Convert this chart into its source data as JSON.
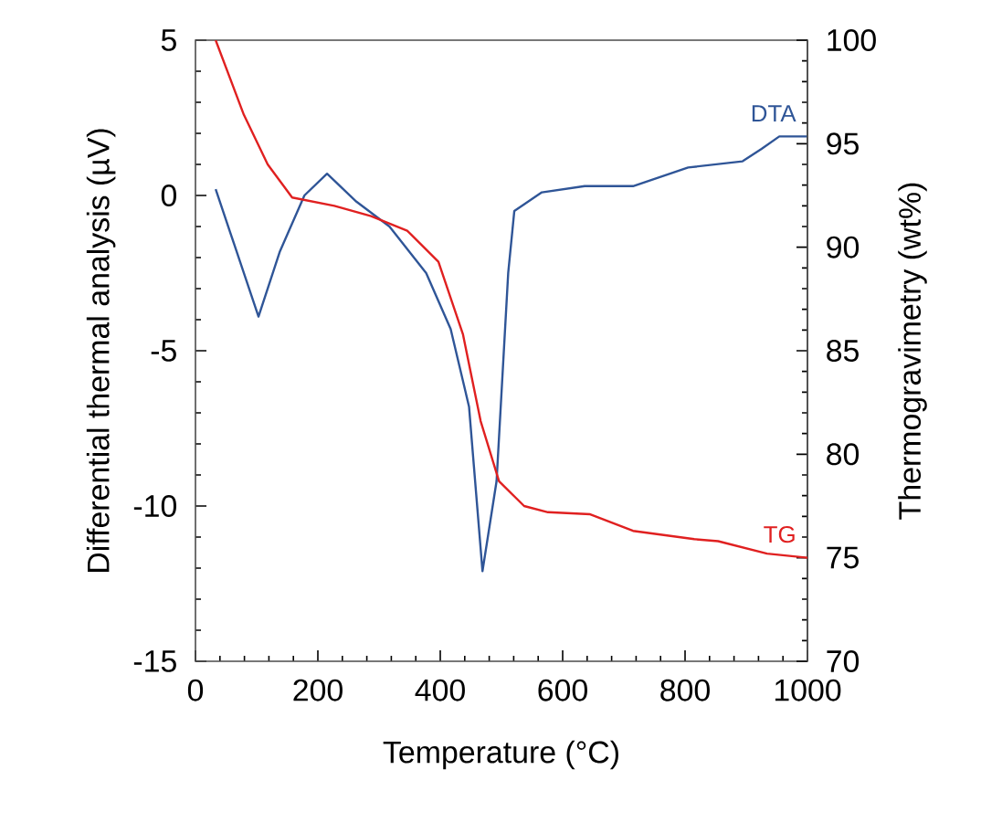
{
  "chart_data": {
    "type": "line",
    "xlabel": "Temperature (°C)",
    "ylabel": "Differential thermal analysis (µV)",
    "y2label": "Thermogravimetry (wt%)",
    "xlim": [
      0,
      1000
    ],
    "xticks": [
      0,
      200,
      400,
      600,
      800,
      1000
    ],
    "ylim": [
      -15,
      5
    ],
    "yticks": [
      -15,
      -10,
      -5,
      0,
      5
    ],
    "y2lim": [
      70,
      100
    ],
    "y2ticks": [
      70,
      75,
      80,
      85,
      90,
      95,
      100
    ],
    "series": [
      {
        "name": "DTA",
        "color": "#2f5597",
        "x": [
          33,
          103,
          138,
          178,
          215,
          263,
          317,
          377,
          417,
          447,
          469,
          492,
          511,
          521,
          566,
          636,
          715,
          805,
          894,
          925,
          954,
          1000
        ],
        "values": [
          0.2,
          -3.9,
          -1.8,
          0.0,
          0.7,
          -0.2,
          -1.0,
          -2.5,
          -4.3,
          -6.8,
          -12.1,
          -9.2,
          -2.5,
          -0.5,
          0.1,
          0.3,
          0.3,
          0.9,
          1.1,
          1.5,
          1.9,
          1.9
        ]
      },
      {
        "name": "TG",
        "color": "#e02020",
        "axis": "y2",
        "x": [
          33,
          79,
          118,
          158,
          227,
          287,
          346,
          397,
          437,
          466,
          496,
          537,
          576,
          645,
          715,
          815,
          854,
          934,
          1000
        ],
        "values": [
          100,
          96.4,
          94.0,
          92.4,
          92.0,
          91.5,
          90.8,
          89.3,
          85.8,
          81.6,
          78.7,
          77.5,
          77.2,
          77.1,
          76.3,
          75.9,
          75.8,
          75.2,
          75.0
        ]
      }
    ]
  }
}
